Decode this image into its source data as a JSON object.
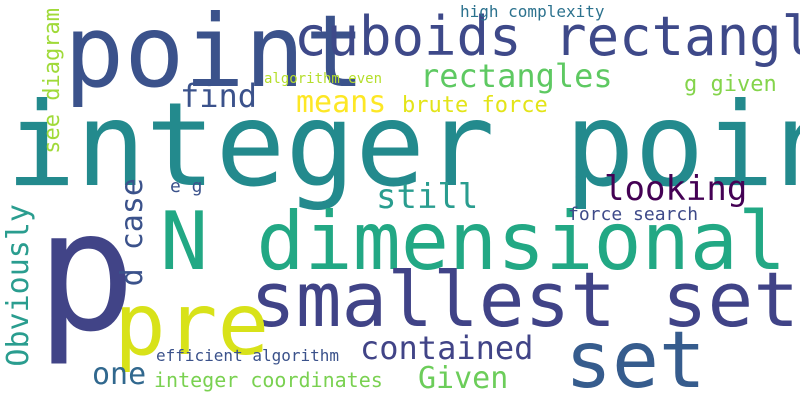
{
  "words": [
    {
      "text": "integer point",
      "color": "#238a8d",
      "rotated": false
    },
    {
      "text": "p",
      "color": "#414487",
      "rotated": false
    },
    {
      "text": "point",
      "color": "#3b528b",
      "rotated": false
    },
    {
      "text": "N dimensional",
      "color": "#22a884",
      "rotated": false
    },
    {
      "text": "smallest set",
      "color": "#404387",
      "rotated": false
    },
    {
      "text": "cuboids rectangles",
      "color": "#3e4989",
      "rotated": false
    },
    {
      "text": "pre",
      "color": "#d8e219",
      "rotated": false
    },
    {
      "text": "set",
      "color": "#365c8d",
      "rotated": false
    },
    {
      "text": "rectangles",
      "color": "#5ec962",
      "rotated": false
    },
    {
      "text": "find",
      "color": "#3b528b",
      "rotated": false
    },
    {
      "text": "means",
      "color": "#fde725",
      "rotated": false
    },
    {
      "text": "brute force",
      "color": "#e3e418",
      "rotated": false
    },
    {
      "text": "still",
      "color": "#2a9d8f",
      "rotated": false
    },
    {
      "text": "looking",
      "color": "#440154",
      "rotated": false
    },
    {
      "text": "d case",
      "color": "#3b528b",
      "rotated": true
    },
    {
      "text": "contained",
      "color": "#414487",
      "rotated": false
    },
    {
      "text": "Obviously",
      "color": "#2a9d8f",
      "rotated": true
    },
    {
      "text": "see diagram",
      "color": "#a0da39",
      "rotated": true
    },
    {
      "text": "one",
      "color": "#31688e",
      "rotated": false
    },
    {
      "text": "Given",
      "color": "#6ccd5a",
      "rotated": false
    },
    {
      "text": "integer coordinates",
      "color": "#7ad151",
      "rotated": false
    },
    {
      "text": "force search",
      "color": "#3e4a89",
      "rotated": false
    },
    {
      "text": "efficient algorithm",
      "color": "#3b528b",
      "rotated": false
    },
    {
      "text": "high complexity",
      "color": "#2c728e",
      "rotated": false
    },
    {
      "text": "algorithm even",
      "color": "#b5de2b",
      "rotated": false
    },
    {
      "text": "g given",
      "color": "#84d44b",
      "rotated": false
    },
    {
      "text": "e g",
      "color": "#3b528b",
      "rotated": false
    }
  ]
}
